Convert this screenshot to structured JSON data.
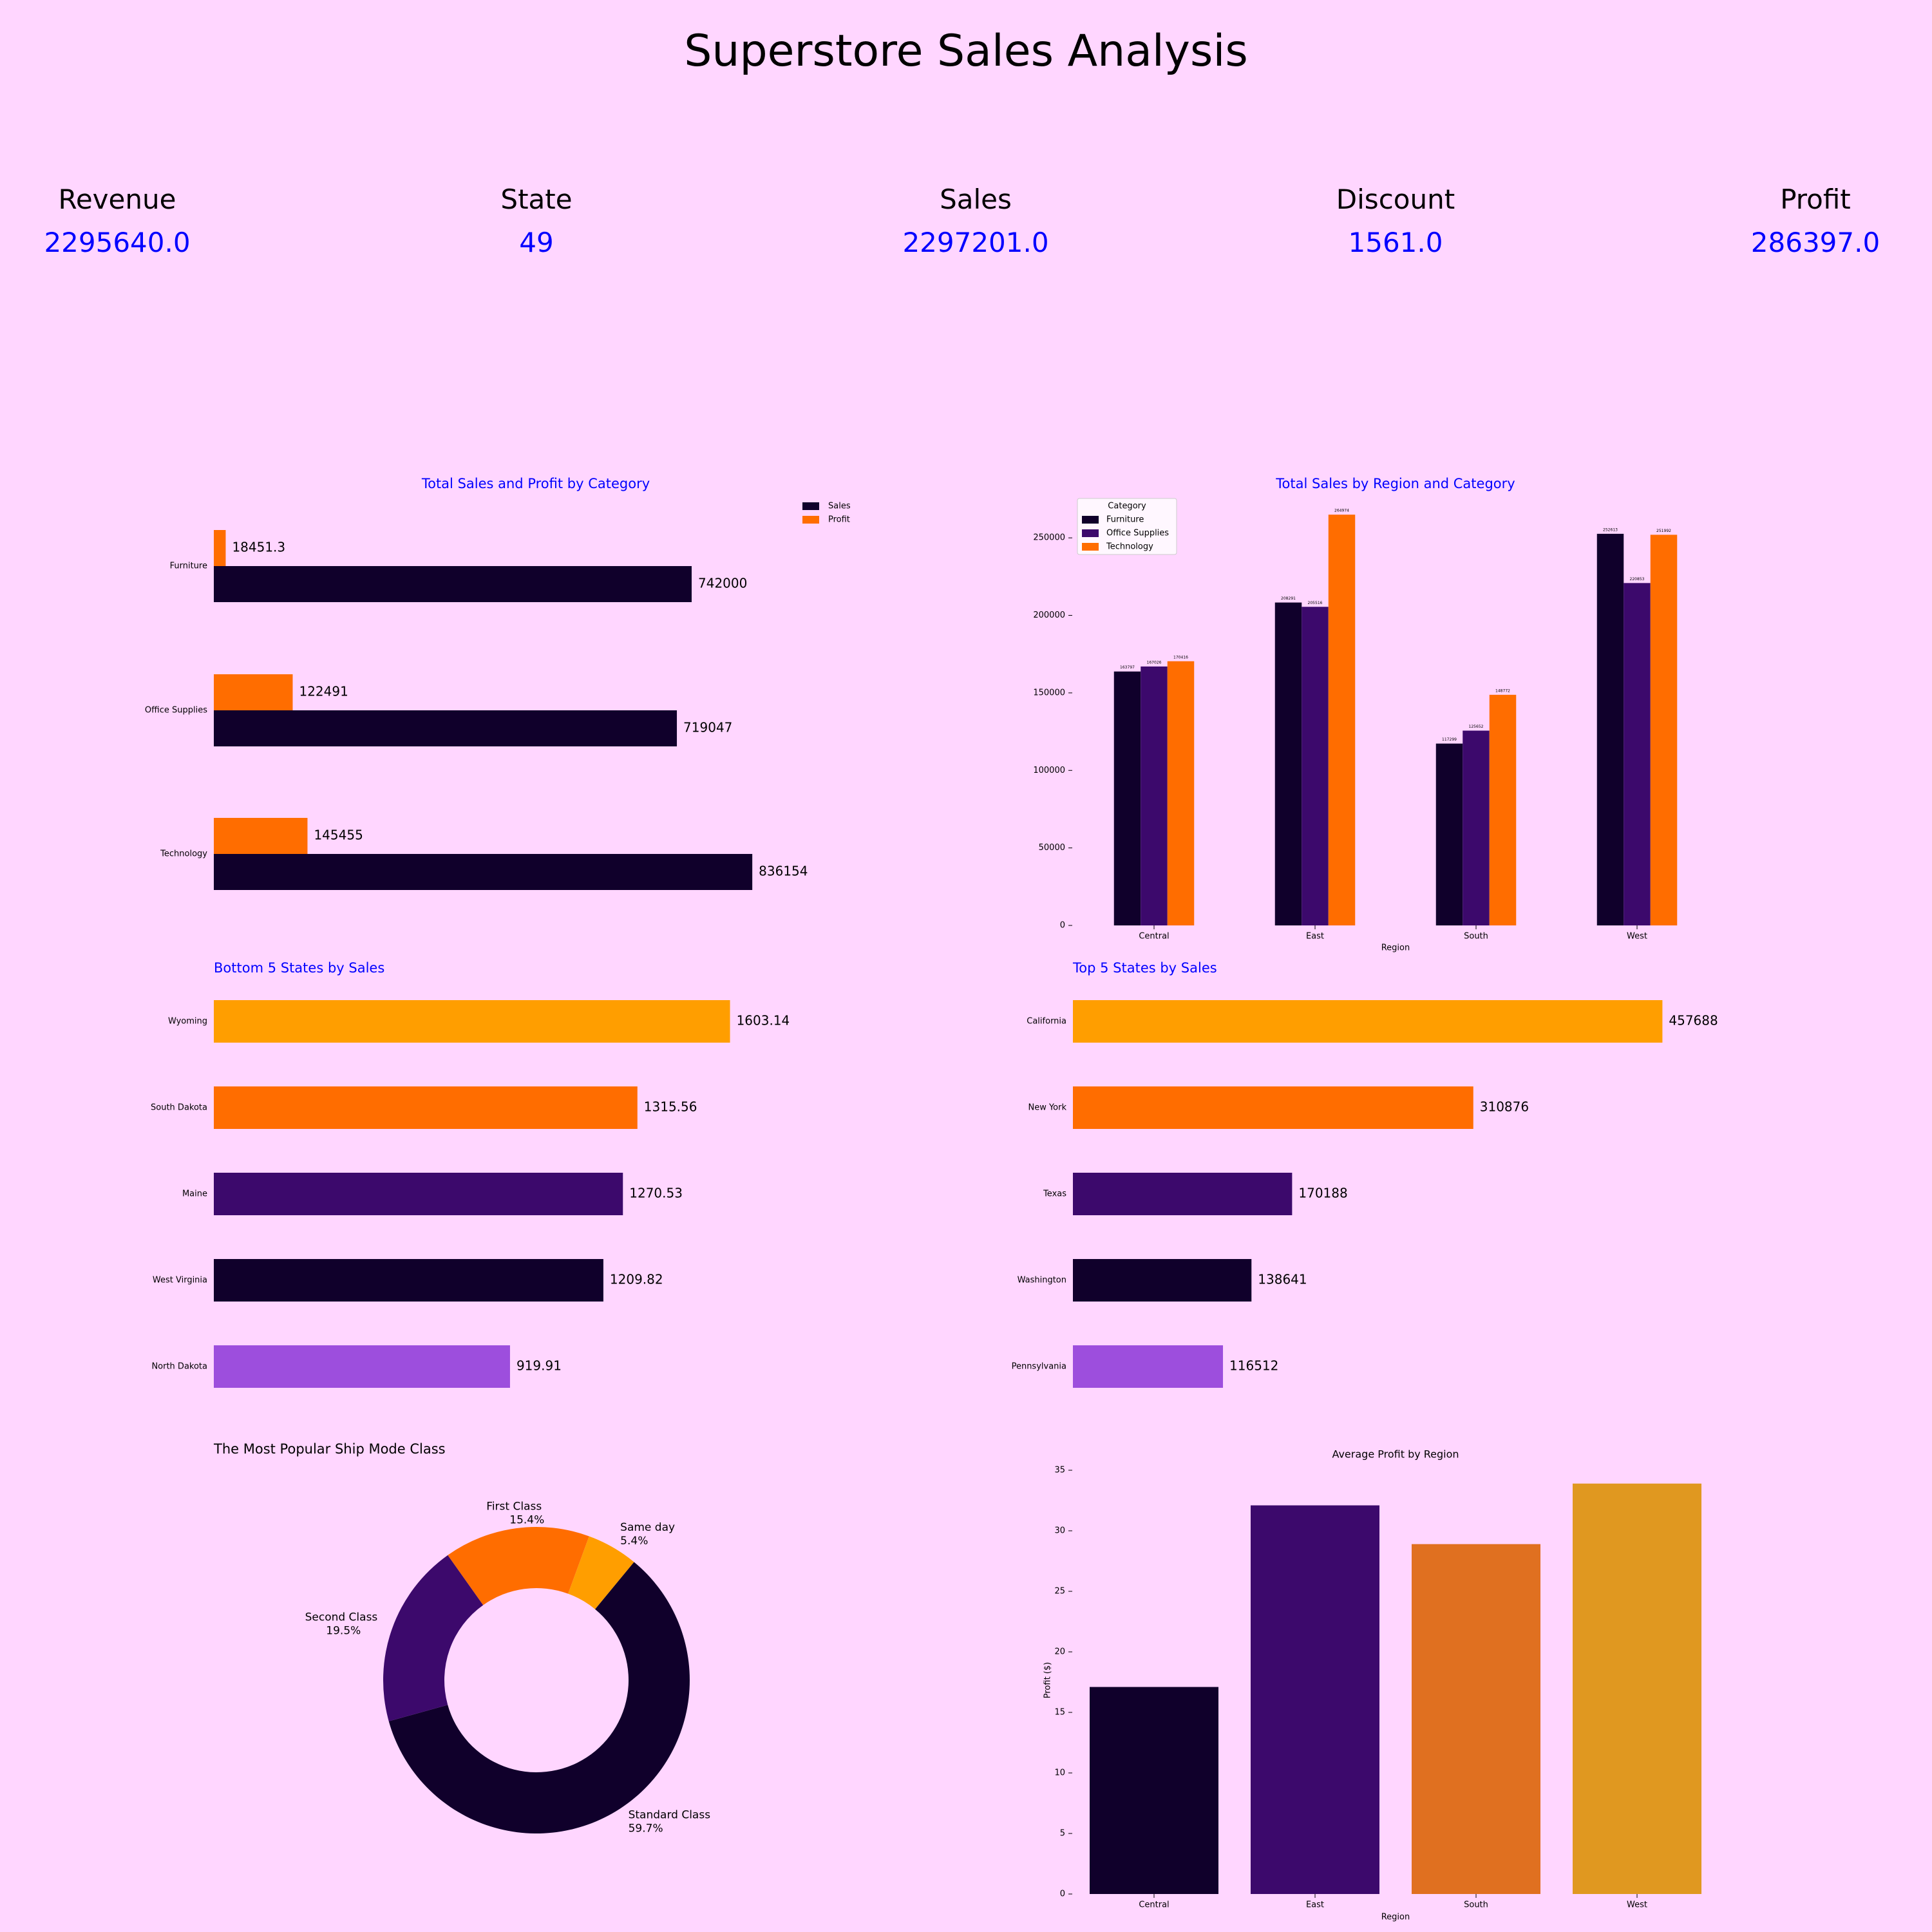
{
  "title": "Superstore Sales Analysis",
  "kpis": [
    {
      "label": "Revenue",
      "value": "2295640.0"
    },
    {
      "label": "State",
      "value": "49"
    },
    {
      "label": "Sales",
      "value": "2297201.0"
    },
    {
      "label": "Discount",
      "value": "1561.0"
    },
    {
      "label": "Profit",
      "value": "286397.0"
    }
  ],
  "colors": {
    "background": "#ffd6ff",
    "dark": "#10002b",
    "purple": "#3c096c",
    "orange": "#ff6d00",
    "amber": "#ff9e00",
    "lavender": "#9d4edd",
    "accent_text": "#0000ff"
  },
  "chart_data": [
    {
      "type": "bar",
      "orientation": "horizontal",
      "title": "Total Sales and Profit by Category",
      "categories": [
        "Furniture",
        "Office Supplies",
        "Technology"
      ],
      "series": [
        {
          "name": "Sales",
          "values": [
            742000,
            719047,
            836154
          ],
          "labels": [
            "742000",
            "719047",
            "836154"
          ],
          "color": "#10002b"
        },
        {
          "name": "Profit",
          "values": [
            18451.3,
            122491,
            145455
          ],
          "labels": [
            "18451.3",
            "122491",
            "145455"
          ],
          "color": "#ff6d00"
        }
      ],
      "legend": "top-right",
      "grid": false
    },
    {
      "type": "bar",
      "title": "Total Sales by Region and Category",
      "categories": [
        "Central",
        "East",
        "South",
        "West"
      ],
      "xlabel": "Region",
      "legend_title": "Category",
      "legend": "top-left",
      "ylim": [
        0,
        275000
      ],
      "yticks": [
        0,
        50000,
        100000,
        150000,
        200000,
        250000
      ],
      "series": [
        {
          "name": "Furniture",
          "values": [
            163797,
            208291,
            117299,
            252613
          ],
          "color": "#10002b"
        },
        {
          "name": "Office Supplies",
          "values": [
            167026,
            205516,
            125652,
            220853
          ],
          "color": "#3c096c"
        },
        {
          "name": "Technology",
          "values": [
            170416,
            264974,
            148772,
            251992
          ],
          "color": "#ff6d00"
        }
      ],
      "grid": false
    },
    {
      "type": "bar",
      "orientation": "horizontal",
      "title": "Bottom 5 States by Sales",
      "categories": [
        "Wyoming",
        "South Dakota",
        "Maine",
        "West Virginia",
        "North Dakota"
      ],
      "values": [
        1603.14,
        1315.56,
        1270.53,
        1209.82,
        919.91
      ],
      "labels": [
        "1603.14",
        "1315.56",
        "1270.53",
        "1209.82",
        "919.91"
      ],
      "colors": [
        "#ff9e00",
        "#ff6d00",
        "#3c096c",
        "#10002b",
        "#9d4edd"
      ],
      "grid": false
    },
    {
      "type": "bar",
      "orientation": "horizontal",
      "title": "Top 5 States by Sales",
      "categories": [
        "California",
        "New York",
        "Texas",
        "Washington",
        "Pennsylvania"
      ],
      "values": [
        457688,
        310876,
        170188,
        138641,
        116512
      ],
      "labels": [
        "457688",
        "310876",
        "170188",
        "138641",
        "116512"
      ],
      "colors": [
        "#ff9e00",
        "#ff6d00",
        "#3c096c",
        "#10002b",
        "#9d4edd"
      ],
      "grid": false
    },
    {
      "type": "pie",
      "donut": true,
      "title": "The Most Popular Ship Mode Class",
      "slices": [
        {
          "label": "Standard Class",
          "pct_text": "59.7%",
          "value": 59.7,
          "color": "#10002b"
        },
        {
          "label": "Second Class",
          "pct_text": "19.5%",
          "value": 19.5,
          "color": "#3c096c"
        },
        {
          "label": "First Class",
          "pct_text": "15.4%",
          "value": 15.4,
          "color": "#ff6d00"
        },
        {
          "label": "Same day",
          "pct_text": "5.4%",
          "value": 5.4,
          "color": "#ff9e00"
        }
      ]
    },
    {
      "type": "bar",
      "title": "Average Profit by Region",
      "categories": [
        "Central",
        "East",
        "South",
        "West"
      ],
      "values": [
        17.1,
        32.1,
        28.9,
        33.9
      ],
      "colors": [
        "#10002b",
        "#3c096c",
        "#e07020",
        "#e09820"
      ],
      "xlabel": "Region",
      "ylabel": "Profit ($)",
      "ylim": [
        0,
        35
      ],
      "yticks": [
        0,
        5,
        10,
        15,
        20,
        25,
        30,
        35
      ],
      "grid": false
    }
  ]
}
